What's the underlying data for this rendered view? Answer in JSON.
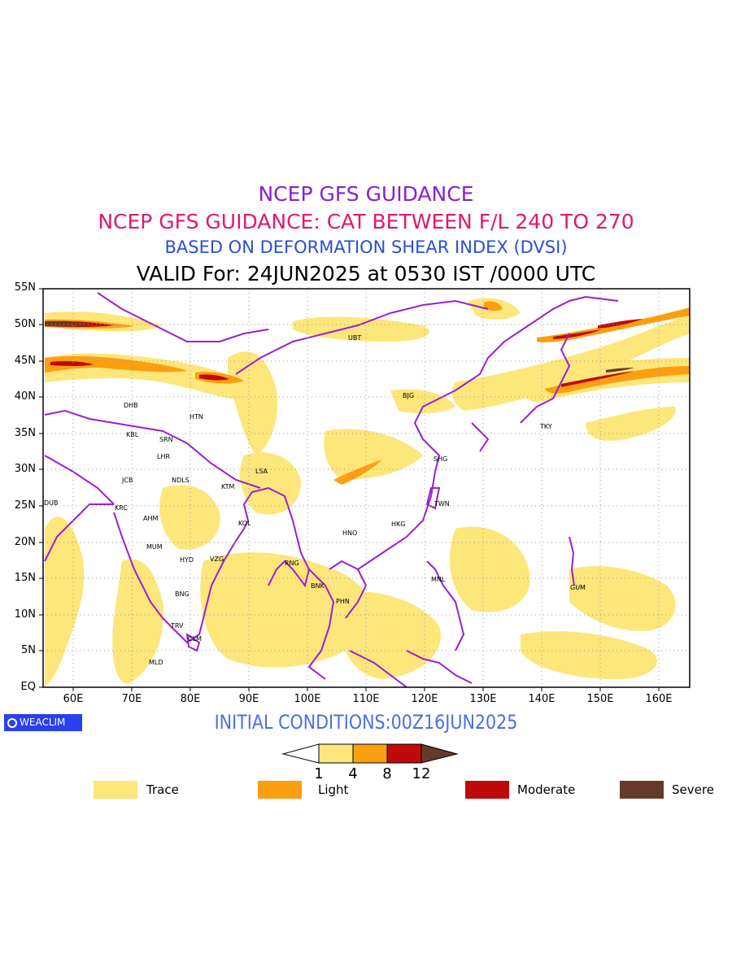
{
  "titles": {
    "line1": "NCEP GFS GUIDANCE",
    "line2": "NCEP GFS GUIDANCE: CAT BETWEEN F/L 240 TO 270",
    "line3": "BASED ON DEFORMATION SHEAR INDEX (DVSI)",
    "line4": "VALID For: 24JUN2025 at 0530 IST /0000 UTC"
  },
  "axes": {
    "lat_labels": [
      "55N",
      "50N",
      "45N",
      "40N",
      "35N",
      "30N",
      "25N",
      "20N",
      "15N",
      "10N",
      "5N",
      "EQ"
    ],
    "lon_labels": [
      "60E",
      "70E",
      "80E",
      "90E",
      "100E",
      "110E",
      "120E",
      "130E",
      "140E",
      "150E",
      "160E"
    ]
  },
  "stations": [
    "UBT",
    "BJG",
    "TKY",
    "DHB",
    "HTN",
    "KBL",
    "SRN",
    "LHR",
    "NDLS",
    "JCB",
    "KTM",
    "LSA",
    "SHG",
    "DUB",
    "KRC",
    "AHM",
    "KOL",
    "TWN",
    "HNO",
    "HKG",
    "MUM",
    "HYD",
    "VZG",
    "RNG",
    "BNK",
    "MNL",
    "PHN",
    "GUM",
    "BNG",
    "TRV",
    "CLM",
    "MLD"
  ],
  "colors": {
    "border": "#9b1fd0",
    "trace": "#fde67a",
    "light": "#fb9f10",
    "moderate": "#c00a0a",
    "severe": "#663a2a",
    "title1": "#8a1fd1",
    "title2": "#e0186f",
    "title3": "#2a4ed6",
    "initial": "#4a6fe0",
    "logo_bg": "#2a3ff0"
  },
  "footer": {
    "initial_conditions": "INITIAL CONDITIONS:00Z16JUN2025",
    "logo": "WEACLIM"
  },
  "colorbar": {
    "ticks": [
      "1",
      "4",
      "8",
      "12"
    ]
  },
  "legend": [
    {
      "label": "Trace",
      "color": "#fde67a"
    },
    {
      "label": "Light",
      "color": "#fb9f10"
    },
    {
      "label": "Moderate",
      "color": "#c00a0a"
    },
    {
      "label": "Severe",
      "color": "#663a2a"
    }
  ]
}
